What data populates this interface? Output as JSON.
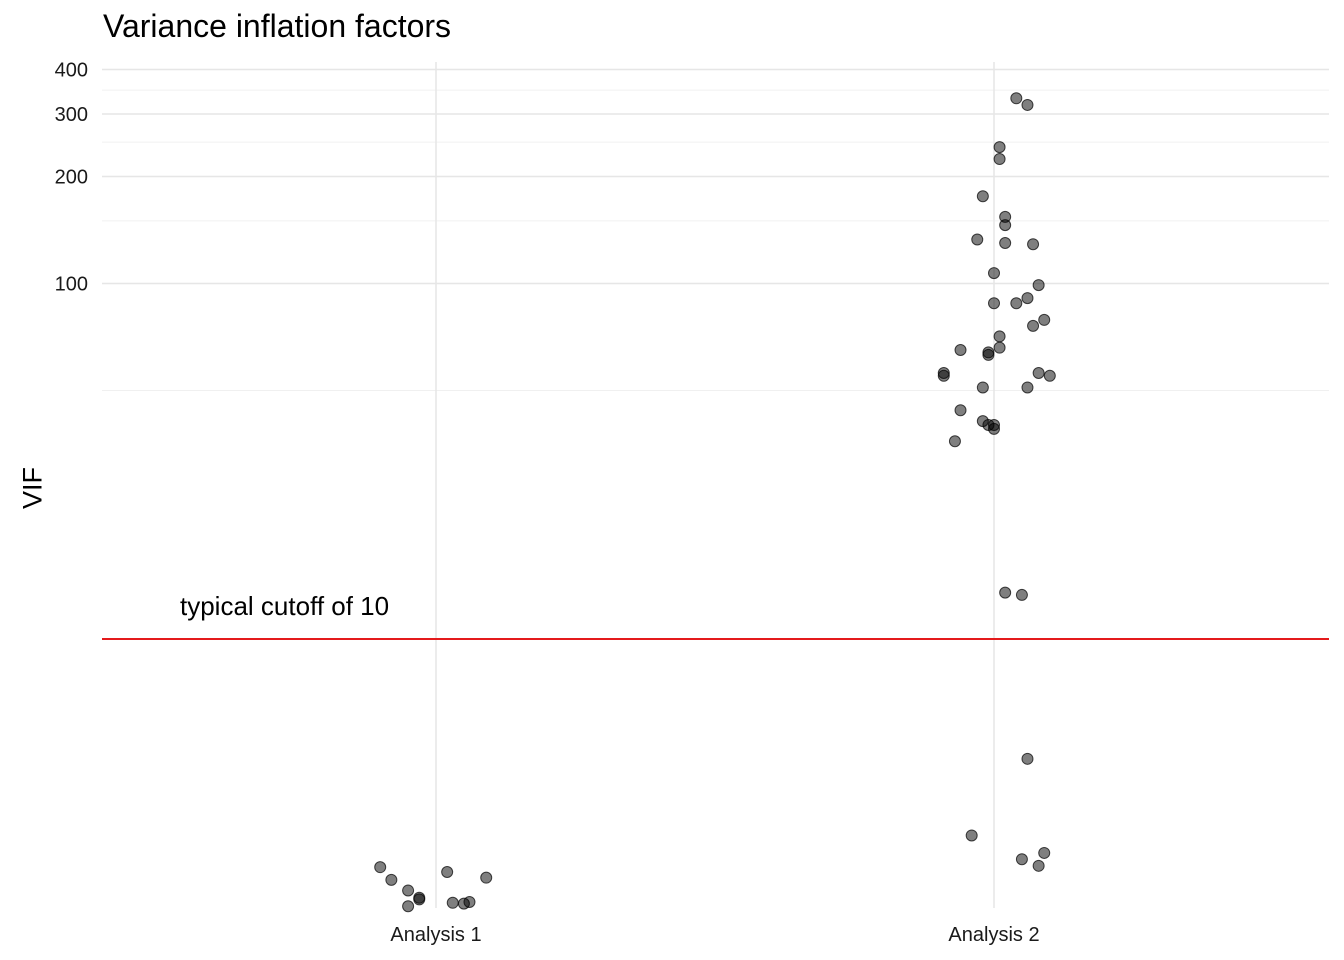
{
  "chart_data": {
    "type": "scatter",
    "title": "Variance inflation factors",
    "xlabel": "",
    "ylabel": "VIF",
    "y_scale": "log",
    "ylim": [
      1.75,
      420
    ],
    "grid": true,
    "categories": [
      "Analysis 1",
      "Analysis 2"
    ],
    "y_ticks": [
      {
        "value": 100,
        "label": "100"
      },
      {
        "value": 200,
        "label": "200"
      },
      {
        "value": 300,
        "label": "300"
      },
      {
        "value": 400,
        "label": "400"
      }
    ],
    "y_minor_gridlines": [
      50,
      150,
      250,
      350
    ],
    "points_color": "#000000",
    "points_opacity": 0.5,
    "series": [
      {
        "category": "Analysis 1",
        "points": [
          {
            "jitter": -0.1,
            "y": 2.28
          },
          {
            "jitter": -0.08,
            "y": 2.1
          },
          {
            "jitter": -0.05,
            "y": 1.96
          },
          {
            "jitter": -0.03,
            "y": 1.87
          },
          {
            "jitter": -0.03,
            "y": 1.85
          },
          {
            "jitter": -0.05,
            "y": 1.77
          },
          {
            "jitter": 0.02,
            "y": 2.21
          },
          {
            "jitter": 0.03,
            "y": 1.81
          },
          {
            "jitter": 0.05,
            "y": 1.8
          },
          {
            "jitter": 0.06,
            "y": 1.82
          },
          {
            "jitter": 0.09,
            "y": 2.13
          }
        ]
      },
      {
        "category": "Analysis 2",
        "points": [
          {
            "jitter": 0.04,
            "y": 332
          },
          {
            "jitter": 0.06,
            "y": 318
          },
          {
            "jitter": 0.01,
            "y": 242
          },
          {
            "jitter": 0.01,
            "y": 224
          },
          {
            "jitter": -0.02,
            "y": 176
          },
          {
            "jitter": 0.02,
            "y": 154
          },
          {
            "jitter": 0.02,
            "y": 146
          },
          {
            "jitter": -0.03,
            "y": 133
          },
          {
            "jitter": 0.02,
            "y": 130
          },
          {
            "jitter": 0.07,
            "y": 129
          },
          {
            "jitter": 0.0,
            "y": 107
          },
          {
            "jitter": 0.08,
            "y": 99
          },
          {
            "jitter": 0.0,
            "y": 88
          },
          {
            "jitter": 0.04,
            "y": 88
          },
          {
            "jitter": 0.06,
            "y": 91
          },
          {
            "jitter": 0.09,
            "y": 79
          },
          {
            "jitter": 0.07,
            "y": 76
          },
          {
            "jitter": 0.01,
            "y": 71
          },
          {
            "jitter": -0.06,
            "y": 65
          },
          {
            "jitter": 0.01,
            "y": 66
          },
          {
            "jitter": -0.01,
            "y": 64
          },
          {
            "jitter": -0.01,
            "y": 63
          },
          {
            "jitter": -0.09,
            "y": 56
          },
          {
            "jitter": -0.09,
            "y": 55
          },
          {
            "jitter": 0.08,
            "y": 56
          },
          {
            "jitter": 0.1,
            "y": 55
          },
          {
            "jitter": -0.02,
            "y": 51
          },
          {
            "jitter": 0.06,
            "y": 51
          },
          {
            "jitter": -0.06,
            "y": 44
          },
          {
            "jitter": -0.02,
            "y": 41
          },
          {
            "jitter": -0.01,
            "y": 40
          },
          {
            "jitter": 0.0,
            "y": 39
          },
          {
            "jitter": 0.0,
            "y": 40
          },
          {
            "jitter": -0.07,
            "y": 36
          },
          {
            "jitter": 0.02,
            "y": 13.5
          },
          {
            "jitter": 0.05,
            "y": 13.3
          },
          {
            "jitter": 0.06,
            "y": 4.6
          },
          {
            "jitter": -0.04,
            "y": 2.8
          },
          {
            "jitter": 0.09,
            "y": 2.5
          },
          {
            "jitter": 0.05,
            "y": 2.4
          },
          {
            "jitter": 0.08,
            "y": 2.3
          }
        ]
      }
    ],
    "reference_line": {
      "value": 10,
      "color": "#e41a1c",
      "label": "typical cutoff of 10"
    }
  }
}
